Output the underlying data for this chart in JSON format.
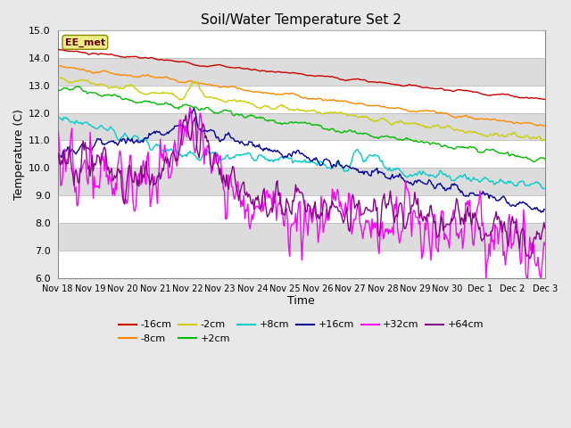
{
  "title": "Soil/Water Temperature Set 2",
  "xlabel": "Time",
  "ylabel": "Temperature (C)",
  "ylim": [
    6.0,
    15.0
  ],
  "yticks": [
    6.0,
    7.0,
    8.0,
    9.0,
    10.0,
    11.0,
    12.0,
    13.0,
    14.0,
    15.0
  ],
  "annotation": "EE_met",
  "bg_color": "#e8e8e8",
  "band_colors": [
    "#ffffff",
    "#dcdcdc"
  ],
  "series": {
    "-16cm": {
      "color": "#cc0000",
      "lw": 1.0
    },
    "-8cm": {
      "color": "#ff8800",
      "lw": 1.0
    },
    "-2cm": {
      "color": "#cccc00",
      "lw": 1.0
    },
    "+2cm": {
      "color": "#00bb00",
      "lw": 1.0
    },
    "+8cm": {
      "color": "#00cccc",
      "lw": 1.0
    },
    "+16cm": {
      "color": "#000099",
      "lw": 1.0
    },
    "+32cm": {
      "color": "#ff00ff",
      "lw": 1.0
    },
    "+64cm": {
      "color": "#880088",
      "lw": 1.0
    }
  },
  "legend_order": [
    "-16cm",
    "-8cm",
    "-2cm",
    "+2cm",
    "+8cm",
    "+16cm",
    "+32cm",
    "+64cm"
  ]
}
